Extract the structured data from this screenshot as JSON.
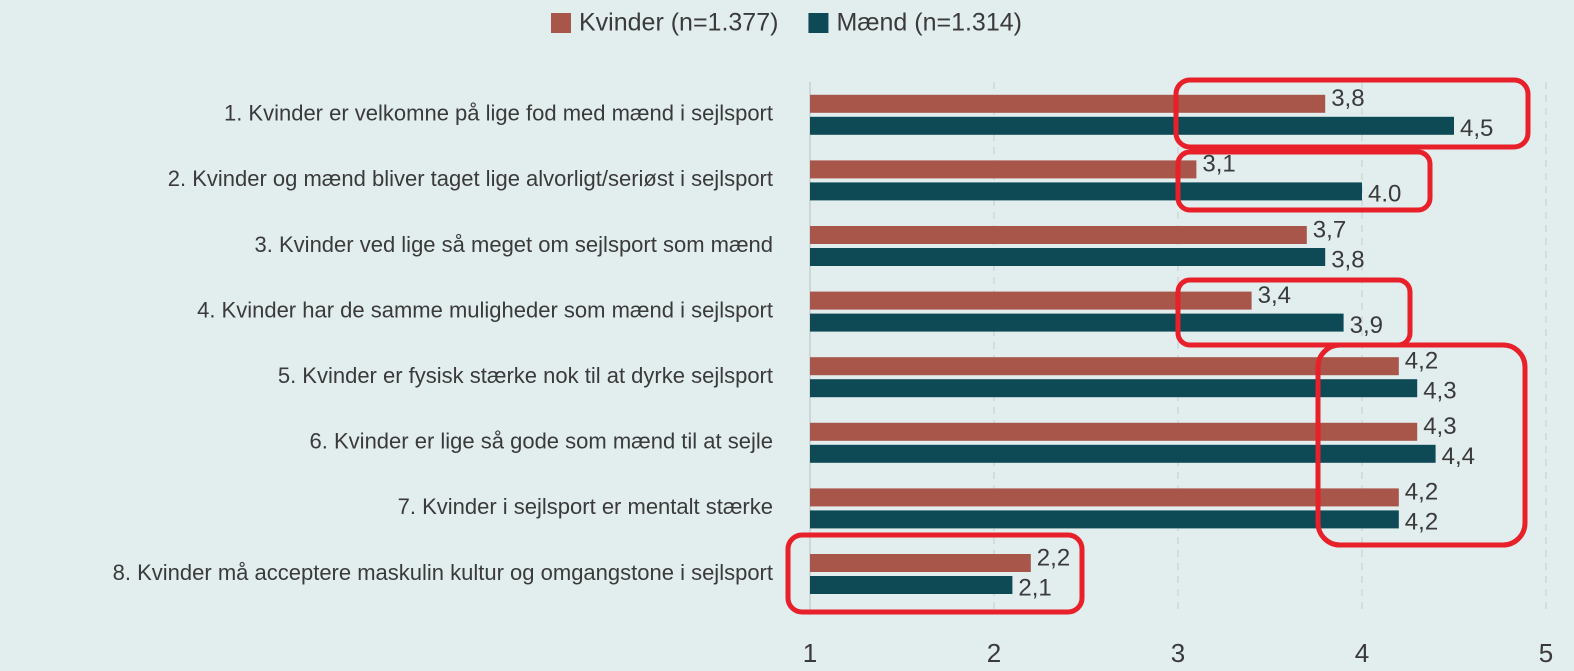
{
  "chart_data": {
    "type": "hbar",
    "categories": [
      "1. Kvinder er velkomne på lige fod med mænd i sejlsport",
      "2. Kvinder og mænd bliver taget lige alvorligt/seriøst i sejlsport",
      "3. Kvinder ved lige så meget om sejlsport som mænd",
      "4. Kvinder har de samme muligheder som mænd i sejlsport",
      "5. Kvinder er fysisk stærke nok til at dyrke sejlsport",
      "6. Kvinder er lige så gode som mænd til at sejle",
      "7. Kvinder i sejlsport er mentalt stærke",
      "8. Kvinder må acceptere maskulin kultur og omgangstone i sejlsport"
    ],
    "series": [
      {
        "name": "Kvinder (n=1.377)",
        "color": "#a8554a",
        "values": [
          3.8,
          3.1,
          3.7,
          3.4,
          4.2,
          4.3,
          4.2,
          2.2
        ],
        "value_labels": [
          "3,8",
          "3,1",
          "3,7",
          "3,4",
          "4,2",
          "4,3",
          "4,2",
          "2,2"
        ]
      },
      {
        "name": "Mænd (n=1.314)",
        "color": "#0d4a55",
        "values": [
          4.5,
          4.0,
          3.8,
          3.9,
          4.3,
          4.4,
          4.2,
          2.1
        ],
        "value_labels": [
          "4,5",
          "4.0",
          "3,8",
          "3,9",
          "4,3",
          "4,4",
          "4,2",
          "2,1"
        ]
      }
    ],
    "xlim": [
      1,
      5
    ],
    "xticks": [
      1,
      2,
      3,
      4,
      5
    ],
    "grid": true,
    "legend": "top"
  }
}
